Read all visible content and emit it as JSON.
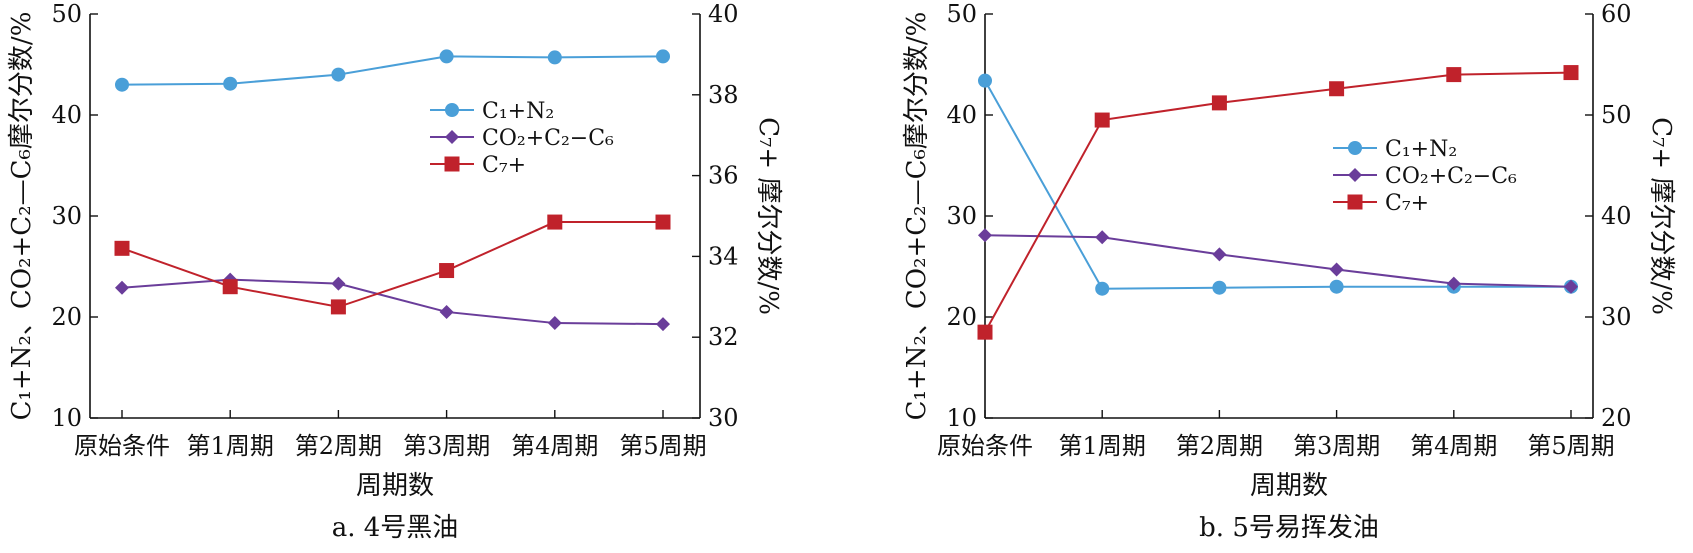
{
  "chart_data": [
    {
      "type": "line",
      "caption": "a. 4号黑油",
      "xlabel": "周期数",
      "categories": [
        "原始条件",
        "第1周期",
        "第2周期",
        "第3周期",
        "第4周期",
        "第5周期"
      ],
      "ylabel_left": "C₁+N₂、CO₂+C₂—C₆摩尔分数/%",
      "ylabel_right": "C₇+ 摩尔分数/%",
      "ylim_left": [
        10,
        50
      ],
      "ylim_right": [
        30,
        40
      ],
      "yticks_left": [
        10,
        20,
        30,
        40,
        50
      ],
      "yticks_right": [
        30,
        32,
        34,
        36,
        38,
        40
      ],
      "legend_position": "center-right",
      "series": [
        {
          "name": "C₁+N₂",
          "axis": "left",
          "marker": "circle",
          "color": "#4a9fd8",
          "values": [
            43.0,
            43.1,
            44.0,
            45.8,
            45.7,
            45.8
          ]
        },
        {
          "name": "CO₂+C₂−C₆",
          "axis": "left",
          "marker": "diamond",
          "color": "#6a3d9a",
          "values": [
            22.9,
            23.7,
            23.3,
            20.5,
            19.4,
            19.3
          ]
        },
        {
          "name": "C₇+",
          "axis": "right",
          "marker": "square",
          "color": "#c0222b",
          "values": [
            34.2,
            33.25,
            32.75,
            33.65,
            34.85,
            34.85
          ]
        }
      ]
    },
    {
      "type": "line",
      "caption": "b. 5号易挥发油",
      "xlabel": "周期数",
      "categories": [
        "原始条件",
        "第1周期",
        "第2周期",
        "第3周期",
        "第4周期",
        "第5周期"
      ],
      "ylabel_left": "C₁+N₂、CO₂+C₂—C₆摩尔分数/%",
      "ylabel_right": "C₇+ 摩尔分数/%",
      "ylim_left": [
        10,
        50
      ],
      "ylim_right": [
        20,
        60
      ],
      "yticks_left": [
        10,
        20,
        30,
        40,
        50
      ],
      "yticks_right": [
        20,
        30,
        40,
        50,
        60
      ],
      "legend_position": "center-right",
      "series": [
        {
          "name": "C₁+N₂",
          "axis": "left",
          "marker": "circle",
          "color": "#4a9fd8",
          "values": [
            43.4,
            22.8,
            22.9,
            23.0,
            23.0,
            23.0
          ]
        },
        {
          "name": "CO₂+C₂−C₆",
          "axis": "left",
          "marker": "diamond",
          "color": "#6a3d9a",
          "values": [
            28.1,
            27.9,
            26.2,
            24.7,
            23.3,
            23.0
          ]
        },
        {
          "name": "C₇+",
          "axis": "right",
          "marker": "square",
          "color": "#c0222b",
          "values": [
            28.5,
            49.5,
            51.2,
            52.6,
            54.0,
            54.2
          ]
        }
      ]
    }
  ]
}
